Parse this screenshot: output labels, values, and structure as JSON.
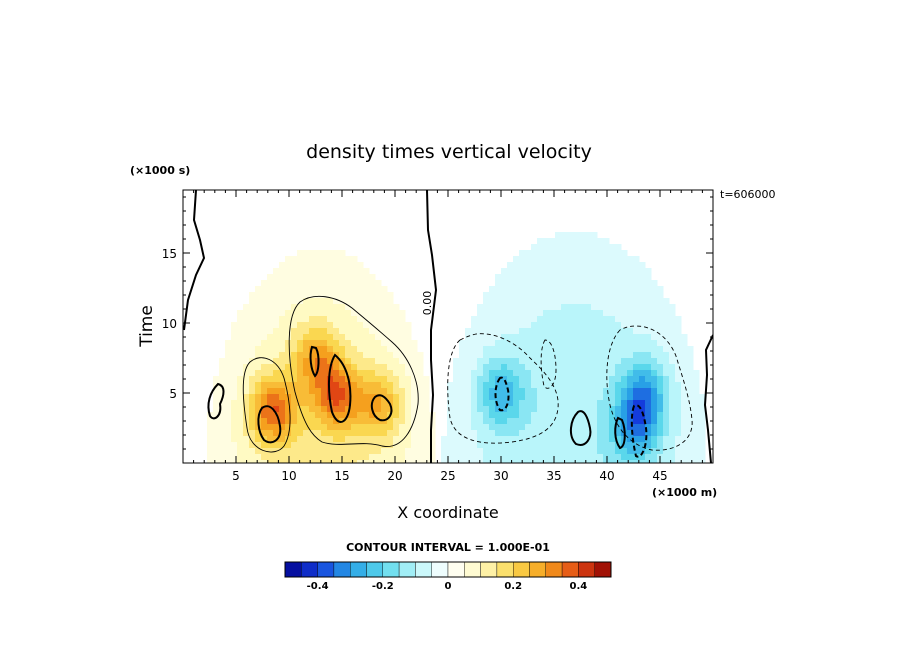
{
  "chart_data": {
    "type": "heatmap",
    "title": "density times vertical velocity",
    "xlabel": "X coordinate",
    "ylabel": "Time",
    "x_unit": "(×1000 m)",
    "y_unit": "(×1000 s)",
    "time_label": "t=606000",
    "xlim": [
      0,
      50
    ],
    "ylim": [
      0,
      19.5
    ],
    "xticks": [
      5,
      10,
      15,
      20,
      25,
      30,
      35,
      40,
      45
    ],
    "yticks": [
      5,
      10,
      15
    ],
    "contour_label": "0.00",
    "contour_interval_text": "CONTOUR INTERVAL = 1.000E-01",
    "colorbar": {
      "min": -0.5,
      "max": 0.5,
      "step": 0.05,
      "ticks": [
        -0.4,
        -0.2,
        0,
        0.2,
        0.4
      ],
      "tick_labels": [
        "-0.4",
        "-0.2",
        "0",
        "0.2",
        "0.4"
      ]
    },
    "features": [
      {
        "sign": "positive",
        "x": 8.5,
        "t": 3.8,
        "peak": 0.32
      },
      {
        "sign": "positive",
        "x": 14.5,
        "t": 4.8,
        "peak": 0.3
      },
      {
        "sign": "positive",
        "x": 12.5,
        "t": 7.5,
        "peak": 0.22
      },
      {
        "sign": "positive",
        "x": 18.5,
        "t": 4.2,
        "peak": 0.22
      },
      {
        "sign": "negative",
        "x": 30,
        "t": 5,
        "peak": -0.22
      },
      {
        "sign": "negative",
        "x": 43.5,
        "t": 5,
        "peak": -0.24
      },
      {
        "sign": "negative",
        "x": 42.8,
        "t": 2.5,
        "peak": -0.24
      }
    ]
  }
}
